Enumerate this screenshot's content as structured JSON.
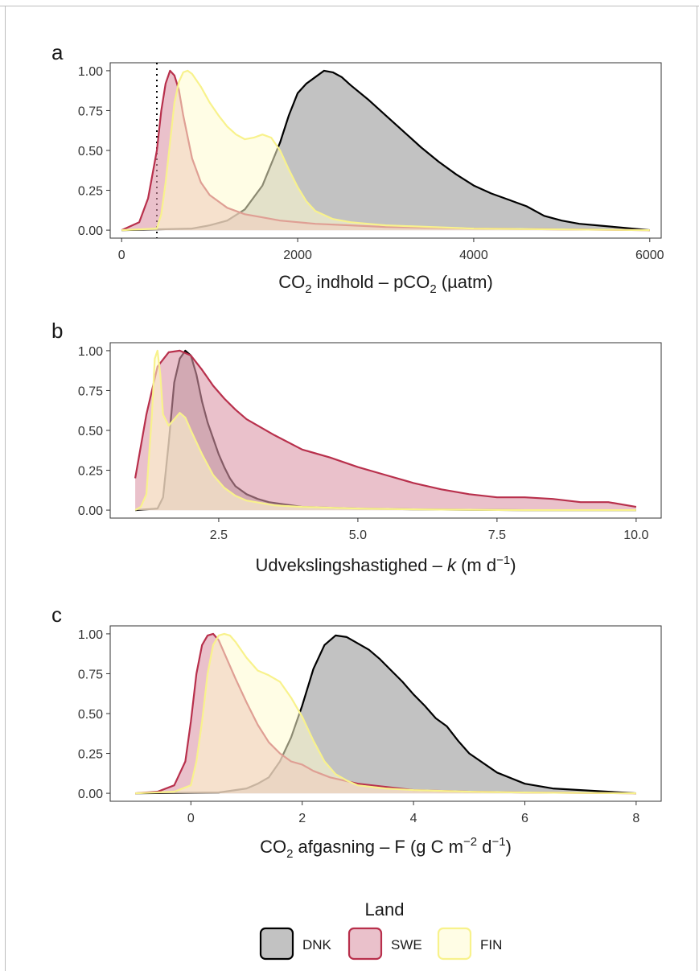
{
  "colors": {
    "DNK_fill": "#999999",
    "DNK_line": "#000000",
    "SWE_fill": "#dc98a8",
    "SWE_line": "#b8304c",
    "FIN_fill": "#fffbd0",
    "FIN_line": "#f8f28c",
    "reference_line": "#000000"
  },
  "legend": {
    "title": "Land",
    "placement": "bottom",
    "entries": [
      {
        "key": "DNK",
        "label": "DNK"
      },
      {
        "key": "SWE",
        "label": "SWE"
      },
      {
        "key": "FIN",
        "label": "FIN"
      }
    ]
  },
  "chart_data": [
    {
      "type": "area",
      "panel": "a",
      "xlabel": {
        "main": "CO",
        "sub": "2",
        "mid": " indhold – pCO",
        "sub2": "2",
        "tail": " (µatm)"
      },
      "ylabel": "",
      "xlim": [
        -130,
        6130
      ],
      "ylim": [
        -0.05,
        1.05
      ],
      "xticks": [
        0,
        2000,
        4000,
        6000
      ],
      "xtick_labels": [
        "0",
        "2000",
        "4000",
        "6000"
      ],
      "yticks": [
        0,
        0.25,
        0.5,
        0.75,
        1
      ],
      "ytick_labels": [
        "0.00",
        "0.25",
        "0.50",
        "0.75",
        "1.00"
      ],
      "grid": false,
      "reference_x": 400,
      "series": [
        {
          "key": "DNK",
          "name": "DNK",
          "x": [
            0,
            800,
            1000,
            1200,
            1400,
            1600,
            1800,
            1900,
            2000,
            2100,
            2200,
            2300,
            2400,
            2500,
            2600,
            2800,
            3000,
            3200,
            3400,
            3600,
            3800,
            4000,
            4200,
            4400,
            4600,
            4800,
            5000,
            5200,
            5400,
            5600,
            5800,
            6000
          ],
          "y": [
            0,
            0.01,
            0.03,
            0.06,
            0.13,
            0.28,
            0.55,
            0.72,
            0.86,
            0.92,
            0.96,
            1.0,
            0.99,
            0.96,
            0.91,
            0.82,
            0.72,
            0.62,
            0.52,
            0.43,
            0.35,
            0.28,
            0.23,
            0.19,
            0.15,
            0.09,
            0.06,
            0.04,
            0.03,
            0.02,
            0.01,
            0
          ]
        },
        {
          "key": "SWE",
          "name": "SWE",
          "x": [
            0,
            200,
            300,
            400,
            450,
            500,
            550,
            600,
            650,
            700,
            800,
            900,
            1000,
            1200,
            1400,
            1600,
            1800,
            2000,
            2200,
            2600,
            3000,
            3500,
            4000,
            5000,
            6000
          ],
          "y": [
            0,
            0.05,
            0.2,
            0.5,
            0.75,
            0.92,
            1.0,
            0.97,
            0.88,
            0.72,
            0.45,
            0.3,
            0.22,
            0.14,
            0.1,
            0.08,
            0.06,
            0.05,
            0.04,
            0.03,
            0.02,
            0.015,
            0.01,
            0.005,
            0
          ]
        },
        {
          "key": "FIN",
          "name": "FIN",
          "x": [
            0,
            400,
            450,
            500,
            550,
            600,
            650,
            700,
            750,
            800,
            900,
            1000,
            1100,
            1200,
            1300,
            1400,
            1500,
            1600,
            1700,
            1800,
            1900,
            2000,
            2100,
            2200,
            2400,
            2600,
            2800,
            3000,
            3500,
            4000,
            5000,
            6000
          ],
          "y": [
            0,
            0.01,
            0.1,
            0.3,
            0.55,
            0.8,
            0.93,
            0.99,
            1.0,
            0.98,
            0.9,
            0.8,
            0.72,
            0.65,
            0.6,
            0.57,
            0.58,
            0.6,
            0.58,
            0.5,
            0.38,
            0.27,
            0.18,
            0.12,
            0.07,
            0.05,
            0.04,
            0.03,
            0.02,
            0.01,
            0.005,
            0
          ]
        }
      ]
    },
    {
      "type": "area",
      "panel": "b",
      "xlabel": {
        "main": "Udvekslingshastighed – ",
        "italic": "k",
        "tail": " (m d",
        "sup": "−1",
        "close": ")"
      },
      "ylabel": "",
      "xlim": [
        0.55,
        10.45
      ],
      "ylim": [
        -0.05,
        1.05
      ],
      "xticks": [
        2.5,
        5,
        7.5,
        10
      ],
      "xtick_labels": [
        "2.5",
        "5.0",
        "7.5",
        "10.0"
      ],
      "yticks": [
        0,
        0.25,
        0.5,
        0.75,
        1
      ],
      "ytick_labels": [
        "0.00",
        "0.25",
        "0.50",
        "0.75",
        "1.00"
      ],
      "grid": false,
      "series": [
        {
          "key": "DNK",
          "name": "DNK",
          "x": [
            1.0,
            1.4,
            1.5,
            1.6,
            1.7,
            1.8,
            1.9,
            2.0,
            2.1,
            2.2,
            2.3,
            2.4,
            2.5,
            2.6,
            2.7,
            2.8,
            3.0,
            3.2,
            3.4,
            3.6,
            3.8,
            4.0,
            4.5,
            5.0,
            6.0,
            8.0,
            10.0
          ],
          "y": [
            0,
            0.01,
            0.08,
            0.42,
            0.8,
            0.95,
            1.0,
            0.97,
            0.85,
            0.68,
            0.55,
            0.45,
            0.35,
            0.27,
            0.2,
            0.15,
            0.1,
            0.07,
            0.05,
            0.04,
            0.03,
            0.02,
            0.015,
            0.01,
            0.005,
            0,
            0
          ]
        },
        {
          "key": "SWE",
          "name": "SWE",
          "x": [
            1.0,
            1.2,
            1.4,
            1.6,
            1.8,
            2.0,
            2.2,
            2.4,
            2.6,
            2.8,
            3.0,
            3.5,
            4.0,
            4.5,
            5.0,
            5.5,
            6.0,
            6.5,
            7.0,
            7.5,
            8.0,
            8.5,
            9.0,
            9.5,
            10.0
          ],
          "y": [
            0.2,
            0.6,
            0.9,
            0.99,
            1.0,
            0.97,
            0.88,
            0.78,
            0.7,
            0.63,
            0.57,
            0.47,
            0.38,
            0.33,
            0.27,
            0.22,
            0.17,
            0.13,
            0.1,
            0.08,
            0.08,
            0.07,
            0.05,
            0.05,
            0.02
          ]
        },
        {
          "key": "FIN",
          "name": "FIN",
          "x": [
            1.0,
            1.1,
            1.2,
            1.3,
            1.35,
            1.4,
            1.45,
            1.5,
            1.6,
            1.7,
            1.8,
            1.9,
            2.0,
            2.2,
            2.4,
            2.6,
            2.8,
            3.0,
            3.5,
            4.0,
            5.0,
            6.0,
            8.0,
            10.0
          ],
          "y": [
            0,
            0.02,
            0.1,
            0.6,
            0.95,
            1.0,
            0.85,
            0.6,
            0.53,
            0.57,
            0.61,
            0.58,
            0.5,
            0.35,
            0.22,
            0.14,
            0.09,
            0.06,
            0.03,
            0.02,
            0.01,
            0.005,
            0,
            0
          ]
        }
      ]
    },
    {
      "type": "area",
      "panel": "c",
      "xlabel": {
        "main": "CO",
        "sub": "2",
        "mid": " afgasning – F (g C m",
        "sup": "−2",
        "mid2": " d",
        "sup2": "−1",
        "close": ")"
      },
      "ylabel": "",
      "xlim": [
        -1.45,
        8.45
      ],
      "ylim": [
        -0.05,
        1.05
      ],
      "xticks": [
        0,
        2,
        4,
        6,
        8
      ],
      "xtick_labels": [
        "0",
        "2",
        "4",
        "6",
        "8"
      ],
      "yticks": [
        0,
        0.25,
        0.5,
        0.75,
        1
      ],
      "ytick_labels": [
        "0.00",
        "0.25",
        "0.50",
        "0.75",
        "1.00"
      ],
      "grid": false,
      "series": [
        {
          "key": "DNK",
          "name": "DNK",
          "x": [
            -1.0,
            0.5,
            1.0,
            1.2,
            1.4,
            1.6,
            1.8,
            2.0,
            2.2,
            2.4,
            2.6,
            2.8,
            3.0,
            3.2,
            3.4,
            3.6,
            3.8,
            4.0,
            4.2,
            4.4,
            4.6,
            4.8,
            5.0,
            5.5,
            6.0,
            6.5,
            7.0,
            7.5,
            8.0
          ],
          "y": [
            0,
            0.005,
            0.03,
            0.06,
            0.1,
            0.2,
            0.35,
            0.55,
            0.78,
            0.93,
            0.99,
            0.98,
            0.94,
            0.9,
            0.84,
            0.77,
            0.7,
            0.62,
            0.55,
            0.47,
            0.42,
            0.33,
            0.25,
            0.13,
            0.06,
            0.03,
            0.02,
            0.01,
            0
          ]
        },
        {
          "key": "SWE",
          "name": "SWE",
          "x": [
            -1.0,
            -0.6,
            -0.3,
            -0.1,
            0.0,
            0.1,
            0.2,
            0.3,
            0.4,
            0.5,
            0.6,
            0.8,
            1.0,
            1.2,
            1.4,
            1.6,
            1.8,
            2.0,
            2.2,
            2.5,
            3.0,
            4.0,
            5.0,
            6.0,
            8.0
          ],
          "y": [
            0,
            0.01,
            0.05,
            0.2,
            0.45,
            0.75,
            0.93,
            0.99,
            1.0,
            0.96,
            0.88,
            0.72,
            0.57,
            0.43,
            0.32,
            0.25,
            0.2,
            0.18,
            0.14,
            0.1,
            0.06,
            0.02,
            0.01,
            0.005,
            0
          ]
        },
        {
          "key": "FIN",
          "name": "FIN",
          "x": [
            -1.0,
            -0.3,
            0.0,
            0.1,
            0.2,
            0.3,
            0.4,
            0.5,
            0.6,
            0.7,
            0.8,
            1.0,
            1.2,
            1.4,
            1.6,
            1.8,
            2.0,
            2.2,
            2.4,
            2.6,
            2.8,
            3.0,
            3.5,
            4.0,
            5.0,
            6.0,
            8.0
          ],
          "y": [
            0,
            0.01,
            0.05,
            0.2,
            0.45,
            0.75,
            0.93,
            0.99,
            1.0,
            0.99,
            0.95,
            0.85,
            0.77,
            0.74,
            0.7,
            0.6,
            0.48,
            0.33,
            0.2,
            0.12,
            0.08,
            0.05,
            0.03,
            0.02,
            0.01,
            0.005,
            0
          ]
        }
      ]
    }
  ]
}
